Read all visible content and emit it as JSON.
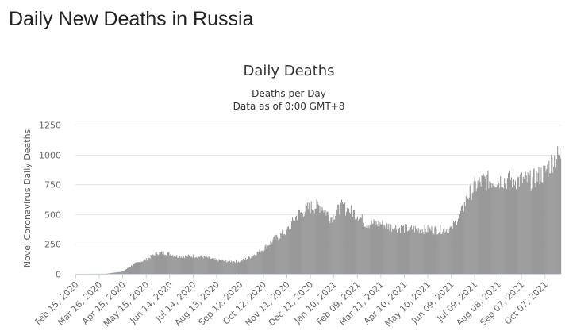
{
  "page": {
    "heading": "Daily New Deaths in Russia"
  },
  "chart_data": {
    "type": "bar",
    "title": "Daily Deaths",
    "subtitle_lines": [
      "Deaths per Day",
      "Data as of 0:00 GMT+8"
    ],
    "ylabel": "Novel Coronavirus Daily Deaths",
    "xlabel": "",
    "ylim": [
      0,
      1250
    ],
    "yticks": [
      0,
      250,
      500,
      750,
      1000,
      1250
    ],
    "grid": true,
    "legend": "none",
    "color": "#999999",
    "x_start": "2020-02-15",
    "x_end": "2021-10-27",
    "x_tick_labels": [
      "Feb 15, 2020",
      "Mar 16, 2020",
      "Apr 15, 2020",
      "May 15, 2020",
      "Jun 14, 2020",
      "Jul 14, 2020",
      "Aug 13, 2020",
      "Sep 12, 2020",
      "Oct 12, 2020",
      "Nov 11, 2020",
      "Dec 11, 2020",
      "Jan 10, 2021",
      "Feb 09, 2021",
      "Mar 11, 2021",
      "Apr 10, 2021",
      "May 10, 2021",
      "Jun 09, 2021",
      "Jul 09, 2021",
      "Aug 08, 2021",
      "Sep 07, 2021",
      "Oct 07, 2021"
    ],
    "approx_weekly_values": [
      {
        "date": "2020-02-15",
        "value": 0
      },
      {
        "date": "2020-03-25",
        "value": 1
      },
      {
        "date": "2020-04-15",
        "value": 20
      },
      {
        "date": "2020-04-29",
        "value": 80
      },
      {
        "date": "2020-05-15",
        "value": 120
      },
      {
        "date": "2020-05-29",
        "value": 175
      },
      {
        "date": "2020-06-10",
        "value": 175
      },
      {
        "date": "2020-06-25",
        "value": 145
      },
      {
        "date": "2020-07-14",
        "value": 150
      },
      {
        "date": "2020-07-29",
        "value": 140
      },
      {
        "date": "2020-08-13",
        "value": 115
      },
      {
        "date": "2020-08-27",
        "value": 105
      },
      {
        "date": "2020-09-12",
        "value": 105
      },
      {
        "date": "2020-09-26",
        "value": 145
      },
      {
        "date": "2020-10-12",
        "value": 210
      },
      {
        "date": "2020-10-26",
        "value": 290
      },
      {
        "date": "2020-11-11",
        "value": 360
      },
      {
        "date": "2020-11-25",
        "value": 500
      },
      {
        "date": "2020-12-11",
        "value": 560
      },
      {
        "date": "2020-12-25",
        "value": 570
      },
      {
        "date": "2021-01-06",
        "value": 470
      },
      {
        "date": "2021-01-20",
        "value": 560
      },
      {
        "date": "2021-02-09",
        "value": 500
      },
      {
        "date": "2021-02-20",
        "value": 420
      },
      {
        "date": "2021-03-11",
        "value": 420
      },
      {
        "date": "2021-03-25",
        "value": 390
      },
      {
        "date": "2021-04-10",
        "value": 380
      },
      {
        "date": "2021-04-25",
        "value": 375
      },
      {
        "date": "2021-05-10",
        "value": 370
      },
      {
        "date": "2021-05-25",
        "value": 370
      },
      {
        "date": "2021-06-09",
        "value": 380
      },
      {
        "date": "2021-06-20",
        "value": 480
      },
      {
        "date": "2021-07-01",
        "value": 660
      },
      {
        "date": "2021-07-09",
        "value": 730
      },
      {
        "date": "2021-07-20",
        "value": 780
      },
      {
        "date": "2021-08-08",
        "value": 785
      },
      {
        "date": "2021-08-20",
        "value": 785
      },
      {
        "date": "2021-09-07",
        "value": 785
      },
      {
        "date": "2021-09-20",
        "value": 785
      },
      {
        "date": "2021-10-07",
        "value": 850
      },
      {
        "date": "2021-10-18",
        "value": 960
      },
      {
        "date": "2021-10-27",
        "value": 1000
      }
    ]
  }
}
